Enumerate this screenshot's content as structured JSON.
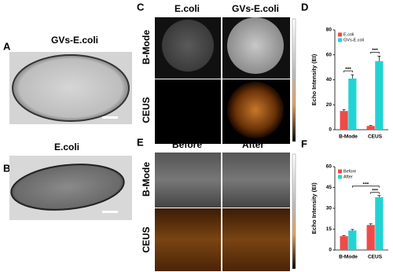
{
  "panels": {
    "A": {
      "label": "A",
      "title": "GVs-E.coli"
    },
    "B": {
      "label": "B",
      "title": "E.coli"
    },
    "C": {
      "label": "C",
      "columns": [
        "E.coli",
        "GVs-E.coli"
      ],
      "rows": [
        "B-Mode",
        "CEUS"
      ]
    },
    "E": {
      "label": "E",
      "columns": [
        "Before",
        "After"
      ],
      "rows": [
        "B-Mode",
        "CEUS"
      ]
    }
  },
  "chart_data": [
    {
      "type": "bar",
      "panel_label": "D",
      "y_label": "Echo Intensity (EI)",
      "categories": [
        "B-Mode",
        "CEUS"
      ],
      "series": [
        {
          "name": "E.coli",
          "color": "#ef4a4a",
          "values": [
            15,
            3
          ],
          "errors": [
            1,
            0.5
          ]
        },
        {
          "name": "GVs-E.coli",
          "color": "#22d3d3",
          "values": [
            41,
            55
          ],
          "errors": [
            3,
            4
          ]
        }
      ],
      "ylim": [
        0,
        80
      ],
      "yticks": [
        0,
        20,
        40,
        60,
        80
      ],
      "legend": "upper left",
      "annotations": [
        "***",
        "***"
      ]
    },
    {
      "type": "bar",
      "panel_label": "F",
      "y_label": "Echo Intensity (EI)",
      "categories": [
        "B-Mode",
        "CEUS"
      ],
      "series": [
        {
          "name": "Before",
          "color": "#ef4a4a",
          "values": [
            10,
            18
          ],
          "errors": [
            0.5,
            0.8
          ]
        },
        {
          "name": "After",
          "color": "#22d3d3",
          "values": [
            14,
            38
          ],
          "errors": [
            0.8,
            1.2
          ]
        }
      ],
      "ylim": [
        0,
        60
      ],
      "yticks": [
        0,
        15,
        30,
        45,
        60
      ],
      "legend": "upper left",
      "annotations": [
        "***",
        "***"
      ]
    }
  ]
}
